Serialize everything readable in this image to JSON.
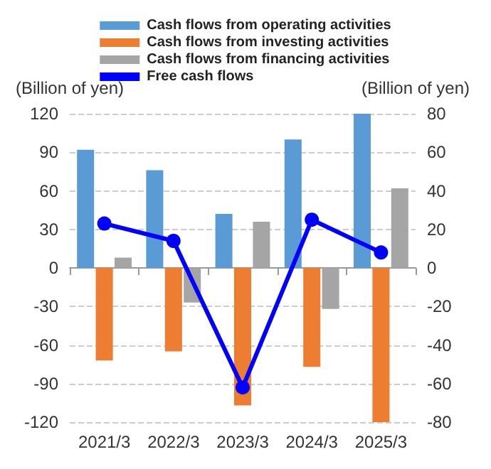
{
  "chart_data": {
    "type": "bar",
    "categories": [
      "2021/3",
      "2022/3",
      "2023/3",
      "2024/3",
      "2025/3"
    ],
    "series": [
      {
        "name": "Cash flows from operating activities",
        "color": "#5b9bd5",
        "values": [
          92,
          76,
          42,
          100,
          120
        ]
      },
      {
        "name": "Cash flows from investing activities",
        "color": "#ed7d31",
        "values": [
          -72,
          -65,
          -107,
          -77,
          -120
        ]
      },
      {
        "name": "Cash flows from financing activities",
        "color": "#a5a5a5",
        "values": [
          8,
          -27,
          36,
          -32,
          62
        ]
      },
      {
        "name": "Free cash flows",
        "type": "line",
        "axis": "y2",
        "color": "#0000ff",
        "values": [
          23,
          14,
          -62,
          25,
          8
        ]
      }
    ],
    "ylabel": "(Billion of yen)",
    "y2label": "(Billion of yen)",
    "ylim": [
      -120,
      120
    ],
    "yticks": [
      -120,
      -90,
      -60,
      -30,
      0,
      30,
      60,
      90,
      120
    ],
    "y2lim": [
      -80,
      80
    ],
    "y2ticks": [
      -80,
      -60,
      -40,
      -20,
      0,
      20,
      40,
      60,
      80
    ],
    "grid": "y",
    "legend": "top",
    "marker": "circle",
    "line_style": "solid"
  }
}
